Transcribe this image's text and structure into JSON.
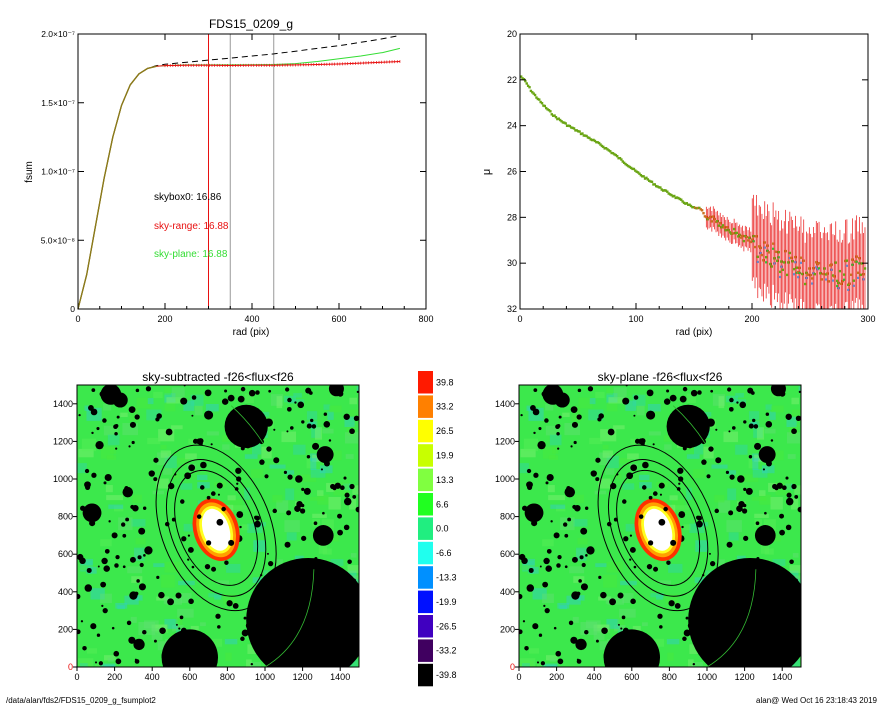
{
  "footer": {
    "path": "/data/alan/fds2/FDS15_0209_g_fsumplot2",
    "stamp": "alan@  Wed Oct 16 23:18:43 2019"
  },
  "colors": {
    "black": "#000000",
    "red": "#e81010",
    "green": "#33dd33",
    "olive": "#8a7a1a",
    "grey": "#999999"
  },
  "chart_data": [
    {
      "type": "line",
      "title": "FDS15_0209_g",
      "xlabel": "rad (pix)",
      "ylabel": "fsum",
      "xlim": [
        0,
        800
      ],
      "ylim": [
        0,
        2e-07
      ],
      "xticks": [
        "0",
        "200",
        "400",
        "600",
        "800"
      ],
      "yticks": [
        "0",
        "5.0×10⁻⁸",
        "1.0×10⁻⁷",
        "1.5×10⁻⁷",
        "2.0×10⁻⁷"
      ],
      "ytick_values": [
        0,
        5e-08,
        1e-07,
        1.5e-07,
        2e-07
      ],
      "vlines": [
        {
          "x": 300,
          "color": "red"
        },
        {
          "x": 350,
          "color": "grey"
        },
        {
          "x": 450,
          "color": "grey"
        }
      ],
      "annotations": [
        {
          "text": "skybox0: 16.86",
          "color": "black"
        },
        {
          "text": "sky-range: 16.88",
          "color": "red"
        },
        {
          "text": "sky-plane: 16.88",
          "color": "green"
        }
      ],
      "series": [
        {
          "style": "dashed-black",
          "x": [
            0,
            20,
            40,
            60,
            80,
            100,
            120,
            140,
            160,
            180,
            200,
            250,
            300,
            350,
            400,
            450,
            500,
            550,
            600,
            650,
            700,
            740
          ],
          "y": [
            0,
            2.5e-08,
            6e-08,
            9.5e-08,
            1.25e-07,
            1.48e-07,
            1.63e-07,
            1.71e-07,
            1.75e-07,
            1.77e-07,
            1.78e-07,
            1.795e-07,
            1.81e-07,
            1.825e-07,
            1.84e-07,
            1.855e-07,
            1.875e-07,
            1.895e-07,
            1.915e-07,
            1.94e-07,
            1.965e-07,
            1.99e-07
          ]
        },
        {
          "style": "green",
          "x": [
            0,
            20,
            40,
            60,
            80,
            100,
            120,
            140,
            160,
            180,
            200,
            250,
            300,
            350,
            400,
            450,
            500,
            550,
            600,
            650,
            700,
            740
          ],
          "y": [
            0,
            2.5e-08,
            6e-08,
            9.5e-08,
            1.25e-07,
            1.48e-07,
            1.63e-07,
            1.71e-07,
            1.75e-07,
            1.765e-07,
            1.77e-07,
            1.775e-07,
            1.775e-07,
            1.775e-07,
            1.776e-07,
            1.778e-07,
            1.785e-07,
            1.8e-07,
            1.82e-07,
            1.84e-07,
            1.865e-07,
            1.895e-07
          ]
        },
        {
          "style": "red",
          "x": [
            0,
            20,
            40,
            60,
            80,
            100,
            120,
            140,
            160,
            180,
            200,
            250,
            300,
            350,
            400,
            450,
            500,
            550,
            600,
            650,
            700,
            740
          ],
          "y": [
            0,
            2.5e-08,
            6e-08,
            9.5e-08,
            1.25e-07,
            1.48e-07,
            1.63e-07,
            1.71e-07,
            1.75e-07,
            1.765e-07,
            1.77e-07,
            1.772e-07,
            1.772e-07,
            1.771e-07,
            1.772e-07,
            1.772e-07,
            1.775e-07,
            1.778e-07,
            1.782e-07,
            1.788e-07,
            1.795e-07,
            1.8e-07
          ]
        }
      ]
    },
    {
      "type": "scatter",
      "xlabel": "rad (pix)",
      "ylabel": "μ",
      "xlim": [
        0,
        300
      ],
      "ylim": [
        32,
        20
      ],
      "xticks": [
        "0",
        "100",
        "200",
        "300"
      ],
      "xtick_values": [
        0,
        100,
        200,
        300
      ],
      "yticks": [
        "20",
        "22",
        "24",
        "26",
        "28",
        "30",
        "32"
      ],
      "ytick_values": [
        20,
        22,
        24,
        26,
        28,
        30,
        32
      ],
      "profile": {
        "r": [
          0,
          5,
          10,
          20,
          30,
          40,
          50,
          60,
          70,
          80,
          90,
          100,
          110,
          120,
          130,
          140,
          150,
          160,
          170,
          180,
          190,
          200,
          210,
          220,
          230,
          240,
          250,
          260,
          270,
          280,
          290,
          300
        ],
        "mu": [
          21.8,
          22.1,
          22.5,
          23.1,
          23.6,
          23.95,
          24.25,
          24.55,
          24.85,
          25.2,
          25.6,
          26.0,
          26.35,
          26.7,
          27.0,
          27.3,
          27.6,
          27.9,
          28.2,
          28.5,
          28.8,
          29.1,
          29.4,
          29.7,
          30.0,
          30.2,
          30.4,
          30.5,
          30.6,
          30.4,
          30.3,
          30.2
        ]
      }
    },
    {
      "type": "heatmap",
      "title": "sky-subtracted -f26<flux<f26",
      "xlim": [
        0,
        1500
      ],
      "ylim": [
        0,
        1500
      ],
      "xticks": [
        "0",
        "200",
        "400",
        "600",
        "800",
        "1000",
        "1200",
        "1400"
      ],
      "yticks": [
        "0",
        "200",
        "400",
        "600",
        "800",
        "1000",
        "1200",
        "1400"
      ],
      "tick_values": [
        0,
        200,
        400,
        600,
        800,
        1000,
        1200,
        1400
      ]
    },
    {
      "type": "heatmap",
      "title": "sky-plane -f26<flux<f26",
      "xlim": [
        0,
        1500
      ],
      "ylim": [
        0,
        1500
      ],
      "xticks": [
        "0",
        "200",
        "400",
        "600",
        "800",
        "1000",
        "1200",
        "1400"
      ],
      "yticks": [
        "0",
        "200",
        "400",
        "600",
        "800",
        "1000",
        "1200",
        "1400"
      ],
      "tick_values": [
        0,
        200,
        400,
        600,
        800,
        1000,
        1200,
        1400
      ]
    }
  ],
  "colorbar": {
    "labels": [
      "39.8",
      "33.2",
      "26.5",
      "19.9",
      "13.3",
      "6.6",
      "0.0",
      "-6.6",
      "-13.3",
      "-19.9",
      "-26.5",
      "-33.2",
      "-39.8"
    ],
    "colors": [
      "#ff1a00",
      "#ff8000",
      "#ffff00",
      "#c8ff00",
      "#80ff40",
      "#20ff20",
      "#20ee80",
      "#20ffee",
      "#0090ff",
      "#0010ff",
      "#4000c0",
      "#400060",
      "#000000"
    ]
  },
  "stars": [
    [
      180,
      1450,
      55
    ],
    [
      230,
      1420,
      40
    ],
    [
      1380,
      1480,
      40
    ],
    [
      80,
      820,
      50
    ],
    [
      1320,
      1130,
      45
    ],
    [
      1310,
      700,
      55
    ],
    [
      490,
      60,
      40
    ],
    [
      330,
      120,
      30
    ],
    [
      1100,
      360,
      30
    ],
    [
      270,
      930,
      28
    ],
    [
      700,
      1340,
      24
    ],
    [
      1020,
      1300,
      22
    ],
    [
      120,
      1180,
      22
    ],
    [
      1440,
      880,
      20
    ],
    [
      380,
      620,
      22
    ],
    [
      920,
      220,
      22
    ],
    [
      610,
      1060,
      18
    ],
    [
      1180,
      1000,
      20
    ],
    [
      300,
      380,
      22
    ],
    [
      820,
      1430,
      18
    ],
    [
      1430,
      240,
      18
    ],
    [
      60,
      420,
      20
    ],
    [
      490,
      1250,
      18
    ],
    [
      1120,
      650,
      16
    ],
    [
      960,
      760,
      18
    ],
    [
      650,
      1200,
      16
    ],
    [
      200,
      700,
      16
    ],
    [
      1230,
      1470,
      16
    ],
    [
      1060,
      1100,
      16
    ],
    [
      540,
      380,
      16
    ],
    [
      860,
      1000,
      14
    ],
    [
      150,
      300,
      14
    ],
    [
      380,
      1480,
      14
    ],
    [
      750,
      270,
      14
    ],
    [
      1200,
      830,
      14
    ],
    [
      90,
      1020,
      14
    ],
    [
      1360,
      960,
      14
    ],
    [
      420,
      1100,
      14
    ],
    [
      1030,
      550,
      14
    ],
    [
      320,
      1330,
      14
    ],
    [
      880,
      150,
      12
    ],
    [
      1260,
      1280,
      12
    ],
    [
      40,
      100,
      12
    ],
    [
      1450,
      560,
      12
    ],
    [
      560,
      880,
      12
    ],
    [
      1130,
      1420,
      12
    ],
    [
      210,
      540,
      12
    ],
    [
      710,
      90,
      12
    ],
    [
      480,
      760,
      12
    ],
    [
      960,
      1460,
      12
    ]
  ]
}
